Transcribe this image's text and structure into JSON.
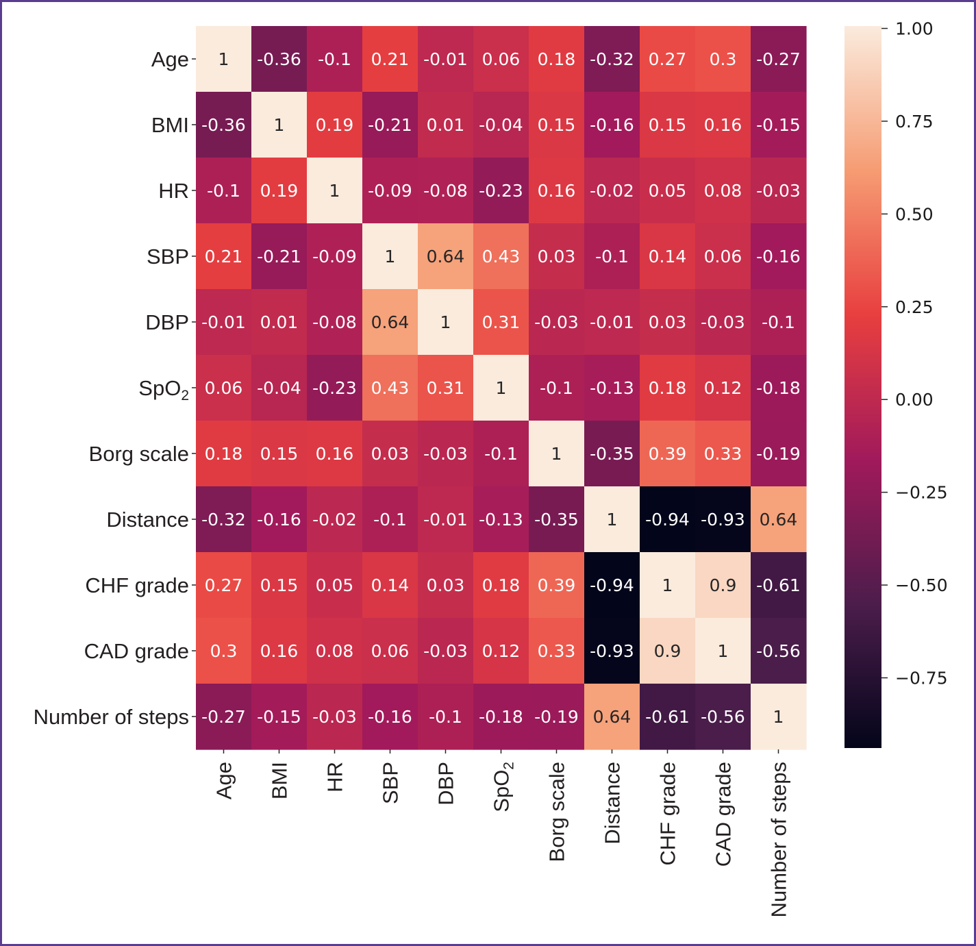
{
  "chart_data": {
    "type": "heatmap",
    "title": "",
    "xlabel": "",
    "ylabel": "",
    "rows": [
      {
        "label": "Age"
      },
      {
        "label": "BMI"
      },
      {
        "label": "HR"
      },
      {
        "label": "SBP"
      },
      {
        "label": "DBP"
      },
      {
        "label": "SpO",
        "sub": "2"
      },
      {
        "label": "Borg scale"
      },
      {
        "label": "Distance"
      },
      {
        "label": "CHF grade"
      },
      {
        "label": "CAD grade"
      },
      {
        "label": "Number of steps"
      }
    ],
    "columns": [
      {
        "label": "Age"
      },
      {
        "label": "BMI"
      },
      {
        "label": "HR"
      },
      {
        "label": "SBP"
      },
      {
        "label": "DBP"
      },
      {
        "label": "SpO",
        "sub": "2"
      },
      {
        "label": "Borg scale"
      },
      {
        "label": "Distance"
      },
      {
        "label": "CHF grade"
      },
      {
        "label": "CAD grade"
      },
      {
        "label": "Number of steps"
      }
    ],
    "values": [
      [
        1,
        -0.36,
        -0.1,
        0.21,
        -0.01,
        0.06,
        0.18,
        -0.32,
        0.27,
        0.3,
        -0.27
      ],
      [
        -0.36,
        1,
        0.19,
        -0.21,
        0.01,
        -0.04,
        0.15,
        -0.16,
        0.15,
        0.16,
        -0.15
      ],
      [
        -0.1,
        0.19,
        1,
        -0.09,
        -0.08,
        -0.23,
        0.16,
        -0.02,
        0.05,
        0.08,
        -0.03
      ],
      [
        0.21,
        -0.21,
        -0.09,
        1,
        0.64,
        0.43,
        0.03,
        -0.1,
        0.14,
        0.06,
        -0.16
      ],
      [
        -0.01,
        0.01,
        -0.08,
        0.64,
        1,
        0.31,
        -0.03,
        -0.01,
        0.03,
        -0.03,
        -0.1
      ],
      [
        0.06,
        -0.04,
        -0.23,
        0.43,
        0.31,
        1,
        -0.1,
        -0.13,
        0.18,
        0.12,
        -0.18
      ],
      [
        0.18,
        0.15,
        0.16,
        0.03,
        -0.03,
        -0.1,
        1,
        -0.35,
        0.39,
        0.33,
        -0.19
      ],
      [
        -0.32,
        -0.16,
        -0.02,
        -0.1,
        -0.01,
        -0.13,
        -0.35,
        1,
        -0.94,
        -0.93,
        0.64
      ],
      [
        0.27,
        0.15,
        0.05,
        0.14,
        0.03,
        0.18,
        0.39,
        -0.94,
        1,
        0.9,
        -0.61
      ],
      [
        0.3,
        0.16,
        0.08,
        0.06,
        -0.03,
        0.12,
        0.33,
        -0.93,
        0.9,
        1,
        -0.56
      ],
      [
        -0.27,
        -0.15,
        -0.03,
        -0.16,
        -0.1,
        -0.18,
        -0.19,
        0.64,
        -0.61,
        -0.56,
        1
      ]
    ],
    "colorbar": {
      "ticks": [
        "1.00",
        "0.75",
        "0.50",
        "0.25",
        "0.00",
        "−0.25",
        "−0.50",
        "−0.75"
      ],
      "tick_values": [
        1.0,
        0.75,
        0.5,
        0.25,
        0.0,
        -0.25,
        -0.5,
        -0.75
      ],
      "range": [
        -0.94,
        1.0
      ],
      "colormap": "rocket",
      "color_stops": [
        "#03051a",
        "#4c1d4b",
        "#a11a5b",
        "#e83f3f",
        "#f69c73",
        "#faebdd"
      ]
    },
    "grid": false,
    "legend": "colorbar-right"
  }
}
